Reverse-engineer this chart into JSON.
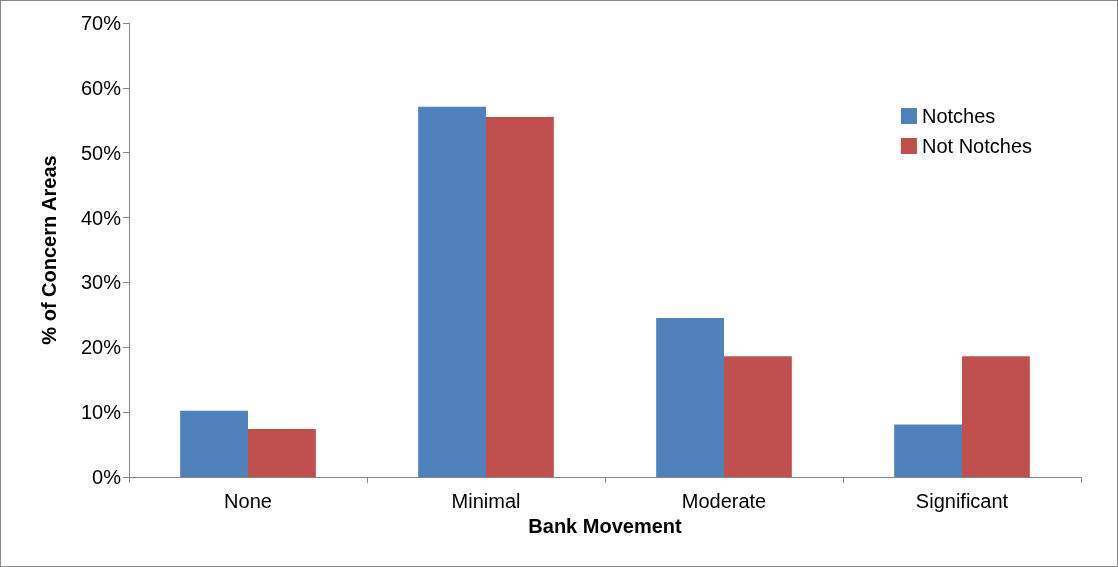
{
  "chart_data": {
    "type": "bar",
    "xlabel": "Bank Movement",
    "ylabel": "% of Concern Areas",
    "categories": [
      "None",
      "Minimal",
      "Moderate",
      "Significant"
    ],
    "series": [
      {
        "name": "Notches",
        "color": "#4f81bd",
        "values": [
          10.2,
          57.1,
          24.5,
          8.1
        ]
      },
      {
        "name": "Not Notches",
        "color": "#c0504d",
        "values": [
          7.4,
          55.5,
          18.6,
          18.6
        ]
      }
    ],
    "ylim": [
      0,
      70
    ],
    "yticks": [
      {
        "value": 0,
        "label": "0%"
      },
      {
        "value": 10,
        "label": "10%"
      },
      {
        "value": 20,
        "label": "20%"
      },
      {
        "value": 30,
        "label": "30%"
      },
      {
        "value": 40,
        "label": "40%"
      },
      {
        "value": 50,
        "label": "50%"
      },
      {
        "value": 60,
        "label": "60%"
      },
      {
        "value": 70,
        "label": "70%"
      }
    ],
    "grid": false,
    "legend": "top right"
  }
}
